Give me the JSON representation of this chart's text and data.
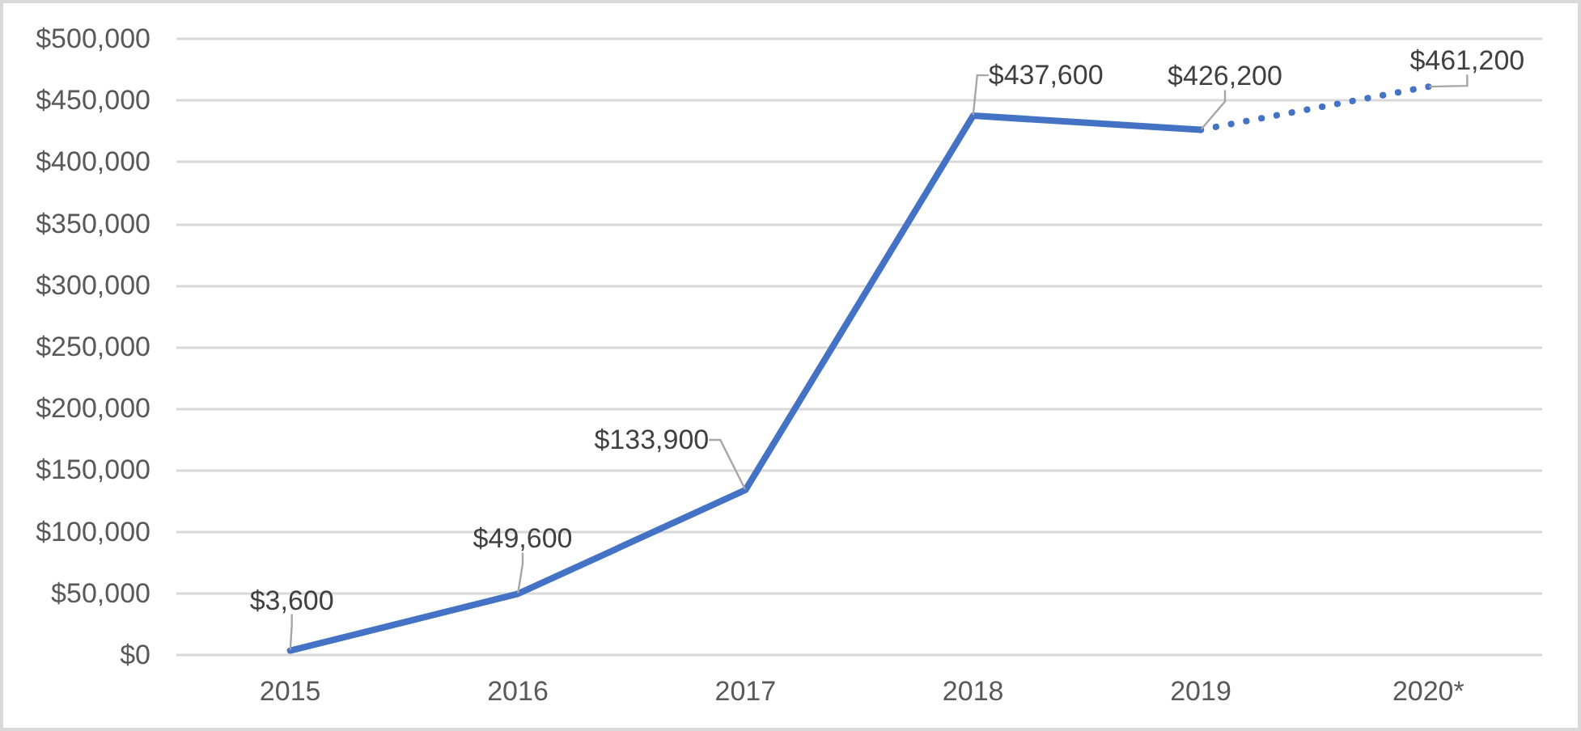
{
  "chart_data": {
    "type": "line",
    "categories": [
      "2015",
      "2016",
      "2017",
      "2018",
      "2019",
      "2020*"
    ],
    "series": [
      {
        "color": "#4472c4",
        "line_style": "solid",
        "values": [
          3600,
          49600,
          133900,
          437600,
          426200,
          null
        ],
        "value_labels": [
          "$3,600",
          "$49,600",
          "$133,900",
          "$437,600",
          "$426,200",
          null
        ]
      },
      {
        "color": "#4472c4",
        "line_style": "dotted",
        "values": [
          null,
          null,
          null,
          null,
          426200,
          461200
        ],
        "value_labels": [
          null,
          null,
          null,
          null,
          null,
          "$461,200"
        ]
      }
    ],
    "ylim": [
      0,
      500000
    ],
    "yticks": [
      {
        "value": 0,
        "label": "$0"
      },
      {
        "value": 50000,
        "label": "$50,000"
      },
      {
        "value": 100000,
        "label": "$100,000"
      },
      {
        "value": 150000,
        "label": "$150,000"
      },
      {
        "value": 200000,
        "label": "$200,000"
      },
      {
        "value": 250000,
        "label": "$250,000"
      },
      {
        "value": 300000,
        "label": "$300,000"
      },
      {
        "value": 350000,
        "label": "$350,000"
      },
      {
        "value": 400000,
        "label": "$400,000"
      },
      {
        "value": 450000,
        "label": "$450,000"
      },
      {
        "value": 500000,
        "label": "$500,000"
      }
    ],
    "grid": "y",
    "marker": "none"
  }
}
